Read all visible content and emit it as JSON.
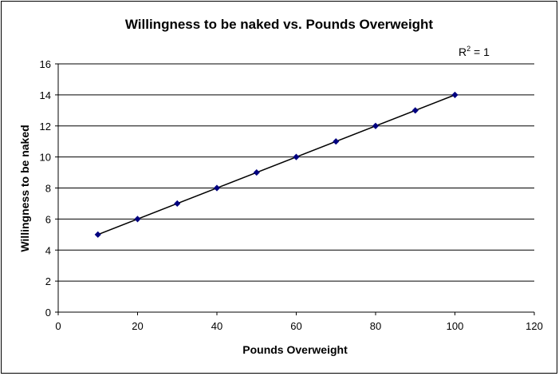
{
  "chart_data": {
    "type": "scatter",
    "title": "Willingness to be naked vs. Pounds Overweight",
    "xlabel": "Pounds Overweight",
    "ylabel": "Willingness to be naked",
    "xlim": [
      0,
      120
    ],
    "ylim": [
      0,
      16
    ],
    "x_ticks": [
      "0",
      "20",
      "40",
      "60",
      "80",
      "100",
      "120"
    ],
    "y_ticks": [
      "0",
      "2",
      "4",
      "6",
      "8",
      "10",
      "12",
      "14",
      "16"
    ],
    "grid": "horizontal",
    "legend": "none",
    "trendline": "linear",
    "annotation": {
      "r_label": "R",
      "r_exponent": "2",
      "r_value": " = 1"
    },
    "series": [
      {
        "x": [
          10,
          20,
          30,
          40,
          50,
          60,
          70,
          80,
          90,
          100
        ],
        "y": [
          5,
          6,
          7,
          8,
          9,
          10,
          11,
          12,
          13,
          14
        ],
        "marker": "diamond",
        "marker_color": "#000080",
        "line_color": "#000000"
      }
    ]
  }
}
